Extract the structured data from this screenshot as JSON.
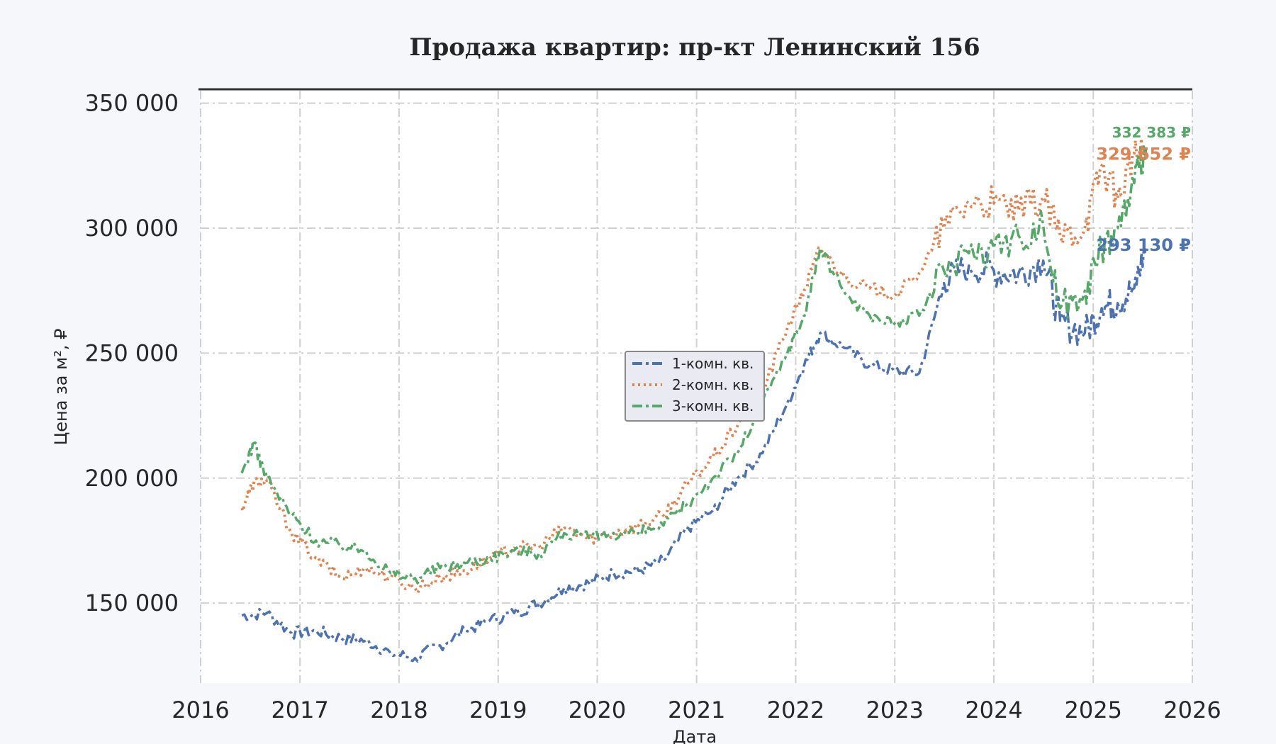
{
  "chart_data": {
    "type": "line",
    "title": "Продажа квартир: пр-кт Ленинский 156",
    "xlabel": "Дата",
    "ylabel": "Цена за м², ₽",
    "xlim": [
      "2016-01-01",
      "2026-01-01"
    ],
    "ylim": [
      118000,
      355000
    ],
    "x_ticks": [
      "2016",
      "2017",
      "2018",
      "2019",
      "2020",
      "2021",
      "2022",
      "2023",
      "2024",
      "2025",
      "2026"
    ],
    "y_ticks": [
      {
        "value": 150000,
        "label": "150 000"
      },
      {
        "value": 200000,
        "label": "200 000"
      },
      {
        "value": 250000,
        "label": "250 000"
      },
      {
        "value": 300000,
        "label": "300 000"
      },
      {
        "value": 350000,
        "label": "350 000"
      }
    ],
    "grid": true,
    "legend_position": "center",
    "series": [
      {
        "name": "1-комн. кв.",
        "color": "#4c72b0",
        "style": "dashdot",
        "last_label": "293 130 ₽",
        "last_value": 293130,
        "points": [
          [
            "2016-06-01",
            145000
          ],
          [
            "2016-09-01",
            146000
          ],
          [
            "2016-12-01",
            138000
          ],
          [
            "2017-03-01",
            139000
          ],
          [
            "2017-06-01",
            136000
          ],
          [
            "2017-09-01",
            135000
          ],
          [
            "2017-12-01",
            130000
          ],
          [
            "2018-03-01",
            128000
          ],
          [
            "2018-06-01",
            133000
          ],
          [
            "2018-09-01",
            139000
          ],
          [
            "2018-12-01",
            143000
          ],
          [
            "2019-03-01",
            146000
          ],
          [
            "2019-06-01",
            150000
          ],
          [
            "2019-09-01",
            156000
          ],
          [
            "2019-12-01",
            158000
          ],
          [
            "2020-03-01",
            162000
          ],
          [
            "2020-06-01",
            163000
          ],
          [
            "2020-09-01",
            167000
          ],
          [
            "2020-12-01",
            180000
          ],
          [
            "2021-03-01",
            187000
          ],
          [
            "2021-06-01",
            200000
          ],
          [
            "2021-09-01",
            210000
          ],
          [
            "2021-12-01",
            230000
          ],
          [
            "2022-02-01",
            245000
          ],
          [
            "2022-04-01",
            258000
          ],
          [
            "2022-07-01",
            252000
          ],
          [
            "2022-10-01",
            245000
          ],
          [
            "2023-01-01",
            243000
          ],
          [
            "2023-04-01",
            242000
          ],
          [
            "2023-07-01",
            278000
          ],
          [
            "2023-10-01",
            285000
          ],
          [
            "2024-01-01",
            283000
          ],
          [
            "2024-04-01",
            282000
          ],
          [
            "2024-07-01",
            287000
          ],
          [
            "2024-09-01",
            263000
          ],
          [
            "2024-12-01",
            258000
          ],
          [
            "2025-02-01",
            268000
          ],
          [
            "2025-04-01",
            270000
          ],
          [
            "2025-06-01",
            276000
          ],
          [
            "2025-07-15",
            293130
          ]
        ]
      },
      {
        "name": "2-комн. кв.",
        "color": "#dd8452",
        "style": "dotted",
        "last_label": "329 652 ₽",
        "last_value": 329652,
        "points": [
          [
            "2016-06-01",
            188000
          ],
          [
            "2016-07-15",
            198000
          ],
          [
            "2016-09-01",
            199000
          ],
          [
            "2016-12-01",
            178000
          ],
          [
            "2017-03-01",
            168000
          ],
          [
            "2017-06-01",
            160000
          ],
          [
            "2017-09-01",
            164000
          ],
          [
            "2017-12-01",
            160000
          ],
          [
            "2018-03-01",
            156000
          ],
          [
            "2018-06-01",
            160000
          ],
          [
            "2018-09-01",
            163000
          ],
          [
            "2018-12-01",
            168000
          ],
          [
            "2019-03-01",
            172000
          ],
          [
            "2019-06-01",
            173000
          ],
          [
            "2019-09-01",
            180000
          ],
          [
            "2019-12-01",
            176000
          ],
          [
            "2020-03-01",
            178000
          ],
          [
            "2020-06-01",
            181000
          ],
          [
            "2020-09-01",
            185000
          ],
          [
            "2020-12-01",
            198000
          ],
          [
            "2021-03-01",
            208000
          ],
          [
            "2021-06-01",
            221000
          ],
          [
            "2021-09-01",
            235000
          ],
          [
            "2021-12-01",
            260000
          ],
          [
            "2022-02-01",
            275000
          ],
          [
            "2022-04-01",
            292000
          ],
          [
            "2022-07-01",
            280000
          ],
          [
            "2022-10-01",
            276000
          ],
          [
            "2023-01-01",
            273000
          ],
          [
            "2023-04-01",
            282000
          ],
          [
            "2023-07-01",
            300000
          ],
          [
            "2023-10-01",
            310000
          ],
          [
            "2024-01-01",
            310000
          ],
          [
            "2024-04-01",
            307000
          ],
          [
            "2024-07-01",
            312000
          ],
          [
            "2024-09-01",
            297000
          ],
          [
            "2024-12-01",
            300000
          ],
          [
            "2025-02-01",
            325000
          ],
          [
            "2025-04-01",
            312000
          ],
          [
            "2025-06-01",
            330000
          ],
          [
            "2025-07-15",
            329652
          ]
        ]
      },
      {
        "name": "3-комн. кв.",
        "color": "#55a868",
        "style": "dashdot",
        "last_label": "332 383 ₽",
        "last_value": 332383,
        "points": [
          [
            "2016-06-01",
            202000
          ],
          [
            "2016-07-15",
            214000
          ],
          [
            "2016-09-01",
            200000
          ],
          [
            "2016-12-01",
            185000
          ],
          [
            "2017-03-01",
            175000
          ],
          [
            "2017-06-01",
            173000
          ],
          [
            "2017-09-01",
            171000
          ],
          [
            "2017-12-01",
            162000
          ],
          [
            "2018-03-01",
            160000
          ],
          [
            "2018-06-01",
            164000
          ],
          [
            "2018-09-01",
            166000
          ],
          [
            "2018-12-01",
            168000
          ],
          [
            "2019-03-01",
            171000
          ],
          [
            "2019-06-01",
            170000
          ],
          [
            "2019-09-01",
            178000
          ],
          [
            "2019-12-01",
            176000
          ],
          [
            "2020-03-01",
            178000
          ],
          [
            "2020-06-01",
            178000
          ],
          [
            "2020-09-01",
            181000
          ],
          [
            "2020-12-01",
            190000
          ],
          [
            "2021-03-01",
            200000
          ],
          [
            "2021-06-01",
            210000
          ],
          [
            "2021-09-01",
            230000
          ],
          [
            "2021-12-01",
            250000
          ],
          [
            "2022-02-01",
            265000
          ],
          [
            "2022-04-01",
            292000
          ],
          [
            "2022-07-01",
            274000
          ],
          [
            "2022-10-01",
            265000
          ],
          [
            "2023-01-01",
            262000
          ],
          [
            "2023-04-01",
            265000
          ],
          [
            "2023-07-01",
            283000
          ],
          [
            "2023-10-01",
            290000
          ],
          [
            "2024-01-01",
            292000
          ],
          [
            "2024-04-01",
            297000
          ],
          [
            "2024-07-01",
            301000
          ],
          [
            "2024-09-01",
            268000
          ],
          [
            "2024-12-01",
            275000
          ],
          [
            "2025-02-01",
            292000
          ],
          [
            "2025-04-01",
            300000
          ],
          [
            "2025-06-01",
            318000
          ],
          [
            "2025-07-15",
            332383
          ]
        ]
      }
    ]
  }
}
